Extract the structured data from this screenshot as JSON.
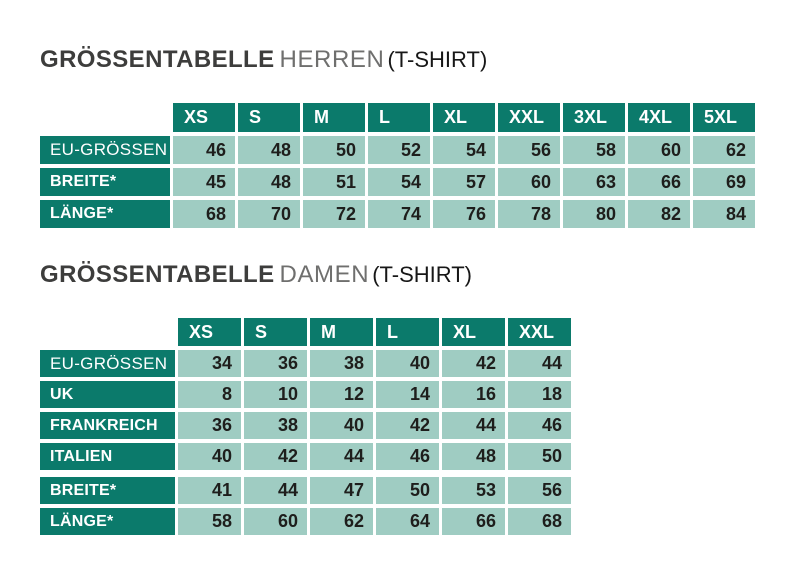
{
  "colors": {
    "header_cell_bg": "#0b7a6b",
    "value_cell_bg": "#9fccc2",
    "header_text": "#ffffff",
    "value_text": "#1e1e1c",
    "title_main": "#3d3d3c",
    "title_category": "#6f6f6e",
    "title_product": "#171717",
    "page_bg": "#ffffff"
  },
  "sections": [
    {
      "title": {
        "main": "GRÖSSENTABELLE",
        "category": "HERREN",
        "product": "(T-SHIRT)"
      },
      "columns": [
        "XS",
        "S",
        "M",
        "L",
        "XL",
        "XXL",
        "3XL",
        "4XL",
        "5XL"
      ],
      "rows": [
        {
          "label": "EU-GRÖSSEN",
          "values": [
            "46",
            "48",
            "50",
            "52",
            "54",
            "56",
            "58",
            "60",
            "62"
          ]
        },
        {
          "label": "BREITE*",
          "values": [
            "45",
            "48",
            "51",
            "54",
            "57",
            "60",
            "63",
            "66",
            "69"
          ]
        },
        {
          "label": "LÄNGE*",
          "values": [
            "68",
            "70",
            "72",
            "74",
            "76",
            "78",
            "80",
            "82",
            "84"
          ]
        }
      ]
    },
    {
      "title": {
        "main": "GRÖSSENTABELLE",
        "category": "DAMEN",
        "product": "(T-SHIRT)"
      },
      "columns": [
        "XS",
        "S",
        "M",
        "L",
        "XL",
        "XXL"
      ],
      "rows": [
        {
          "label": "EU-GRÖSSEN",
          "values": [
            "34",
            "36",
            "38",
            "40",
            "42",
            "44"
          ]
        },
        {
          "label": "UK",
          "values": [
            "8",
            "10",
            "12",
            "14",
            "16",
            "18"
          ]
        },
        {
          "label": "FRANKREICH",
          "values": [
            "36",
            "38",
            "40",
            "42",
            "44",
            "46"
          ]
        },
        {
          "label": "ITALIEN",
          "values": [
            "40",
            "42",
            "44",
            "46",
            "48",
            "50"
          ]
        },
        {
          "label": "BREITE*",
          "values": [
            "41",
            "44",
            "47",
            "50",
            "53",
            "56"
          ]
        },
        {
          "label": "LÄNGE*",
          "values": [
            "58",
            "60",
            "62",
            "64",
            "66",
            "68"
          ]
        }
      ]
    }
  ]
}
